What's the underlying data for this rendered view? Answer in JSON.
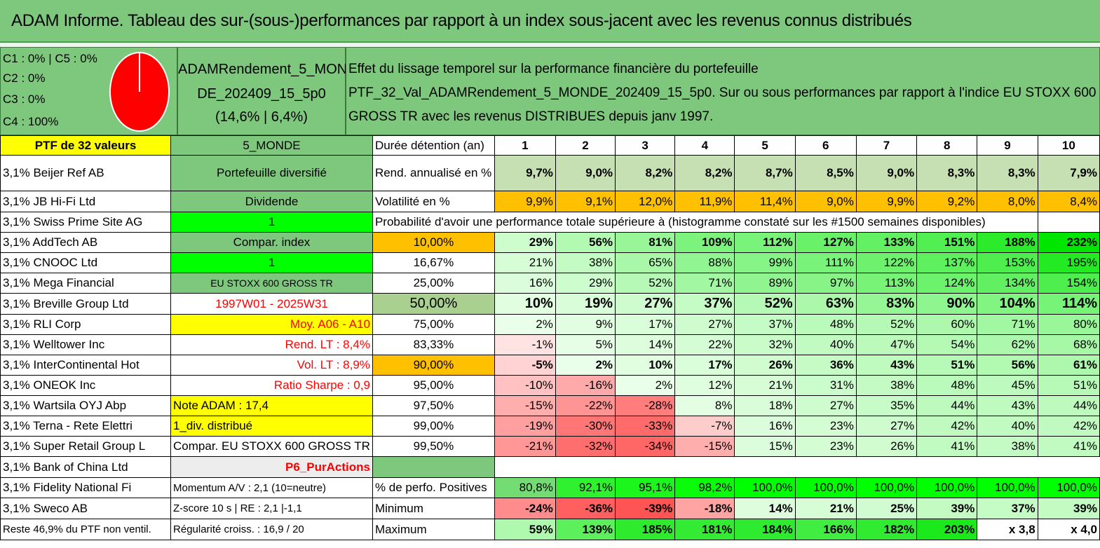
{
  "title": "ADAM Informe. Tableau des sur-(sous-)performances par rapport à un index sous-jacent avec les revenus connus distribués",
  "legend": {
    "lines": [
      "C1 : 0% | C5 : 0%",
      "C2 : 0%",
      "C3 : 0%",
      "C4 : 100%"
    ],
    "pie": [
      {
        "label": "C4",
        "value": 100,
        "color": "#ff0000"
      }
    ]
  },
  "portfolio_name": {
    "line1": "ADAMRendement_5_MON",
    "line2": "DE_202409_15_5p0",
    "line3": "(14,6% | 6,4%)"
  },
  "effect": {
    "line1": "Effet du lissage temporel sur la performance financière du portefeuille",
    "line2": "PTF_32_Val_ADAMRendement_5_MONDE_202409_15_5p0. Sur ou sous performances par rapport à l'indice EU STOXX 600",
    "line3": "GROSS TR avec les revenus DISTRIBUES depuis janv 1997."
  },
  "header_row": {
    "ptf_label": "PTF de 32 valeurs",
    "code": "5_MONDE",
    "duration_label": "Durée détention (an)",
    "years": [
      "1",
      "2",
      "3",
      "4",
      "5",
      "6",
      "7",
      "8",
      "9",
      "10"
    ]
  },
  "rend_row": {
    "holding": "3,1% Beijer Ref AB",
    "info": "Portefeuille diversifié",
    "label": "Rend. annualisé en %",
    "values": [
      "9,7%",
      "9,0%",
      "8,2%",
      "8,2%",
      "8,7%",
      "8,5%",
      "9,0%",
      "8,3%",
      "8,3%",
      "7,9%"
    ]
  },
  "vol_row": {
    "holding": "3,1% JB Hi-Fi Ltd",
    "info": "Dividende",
    "label": "Volatilité en %",
    "values": [
      "9,9%",
      "9,1%",
      "12,0%",
      "11,9%",
      "11,4%",
      "9,0%",
      "9,9%",
      "9,2%",
      "8,0%",
      "8,4%"
    ]
  },
  "prob_header": {
    "holding": "3,1% Swiss Prime Site AG",
    "info": "1",
    "text": "Probabilité d'avoir une performance totale supérieure à (histogramme constaté sur les #1500 semaines disponibles)"
  },
  "prob_rows": [
    {
      "holding": "3,1% AddTech AB",
      "info": "Compar. index",
      "prob": "10,00%",
      "values": [
        "29%",
        "56%",
        "81%",
        "109%",
        "112%",
        "127%",
        "133%",
        "151%",
        "188%",
        "232%"
      ]
    },
    {
      "holding": "3,1% CNOOC Ltd",
      "info": "1",
      "prob": "16,67%",
      "values": [
        "21%",
        "38%",
        "65%",
        "88%",
        "99%",
        "111%",
        "122%",
        "137%",
        "153%",
        "195%"
      ]
    },
    {
      "holding": "3,1% Mega Financial",
      "info": "EU STOXX 600 GROSS TR",
      "prob": "25,00%",
      "values": [
        "16%",
        "29%",
        "52%",
        "71%",
        "89%",
        "97%",
        "113%",
        "124%",
        "134%",
        "154%"
      ]
    },
    {
      "holding": "3,1% Breville Group Ltd",
      "info": "1997W01 - 2025W31",
      "prob": "50,00%",
      "values": [
        "10%",
        "19%",
        "27%",
        "37%",
        "52%",
        "63%",
        "83%",
        "90%",
        "104%",
        "114%"
      ]
    },
    {
      "holding": "3,1% RLI Corp",
      "info": "Moy. A06 - A10",
      "prob": "75,00%",
      "values": [
        "2%",
        "9%",
        "17%",
        "27%",
        "37%",
        "48%",
        "52%",
        "60%",
        "71%",
        "80%"
      ]
    },
    {
      "holding": "3,1% Welltower Inc",
      "info": "Rend. LT : 8,4%",
      "prob": "83,33%",
      "values": [
        "-1%",
        "5%",
        "14%",
        "22%",
        "32%",
        "40%",
        "47%",
        "54%",
        "62%",
        "68%"
      ]
    },
    {
      "holding": "3,1% InterContinental Hot",
      "info": "Vol. LT : 8,9%",
      "prob": "90,00%",
      "values": [
        "-5%",
        "2%",
        "10%",
        "17%",
        "26%",
        "36%",
        "43%",
        "51%",
        "56%",
        "61%"
      ]
    },
    {
      "holding": "3,1% ONEOK Inc",
      "info": "Ratio Sharpe : 0,9",
      "prob": "95,00%",
      "values": [
        "-10%",
        "-16%",
        "2%",
        "12%",
        "21%",
        "31%",
        "38%",
        "48%",
        "45%",
        "51%"
      ]
    },
    {
      "holding": "3,1% Wartsila OYJ Abp",
      "info": "Note ADAM : 17,4",
      "prob": "97,50%",
      "values": [
        "-15%",
        "-22%",
        "-28%",
        "8%",
        "18%",
        "27%",
        "35%",
        "44%",
        "43%",
        "44%"
      ]
    },
    {
      "holding": "3,1% Terna - Rete Elettri",
      "info": "1_div. distribué",
      "prob": "99,00%",
      "values": [
        "-19%",
        "-30%",
        "-33%",
        "-7%",
        "16%",
        "23%",
        "27%",
        "42%",
        "40%",
        "42%"
      ]
    },
    {
      "holding": "3,1% Super Retail Group L",
      "info": "Compar. EU STOXX 600 GROSS TR",
      "prob": "99,50%",
      "values": [
        "-21%",
        "-32%",
        "-34%",
        "-15%",
        "15%",
        "23%",
        "26%",
        "41%",
        "38%",
        "41%"
      ]
    }
  ],
  "bank_row": {
    "holding": "3,1% Bank of China Ltd",
    "info": "P6_PurActions"
  },
  "pos_row": {
    "holding": "3,1% Fidelity National Fi",
    "info": "Momentum A/V : 2,1 (10=neutre)",
    "label": "% de perfo. Positives",
    "values": [
      "80,8%",
      "92,1%",
      "95,1%",
      "98,2%",
      "100,0%",
      "100,0%",
      "100,0%",
      "100,0%",
      "100,0%",
      "100,0%"
    ]
  },
  "min_row": {
    "holding": "3,1% Sweco AB",
    "info": "Z-score 10 s | RE : 2,1 |-1,1",
    "label": "Minimum",
    "values": [
      "-24%",
      "-36%",
      "-39%",
      "-18%",
      "14%",
      "21%",
      "25%",
      "39%",
      "37%",
      "39%"
    ]
  },
  "max_row": {
    "holding": "Reste 46,9% du PTF non ventil.",
    "info": "Régularité croiss. : 16,9 / 20",
    "label": "Maximum",
    "values": [
      "59%",
      "139%",
      "185%",
      "181%",
      "184%",
      "166%",
      "182%",
      "203%",
      "x 3,8",
      "x 4,0"
    ]
  }
}
